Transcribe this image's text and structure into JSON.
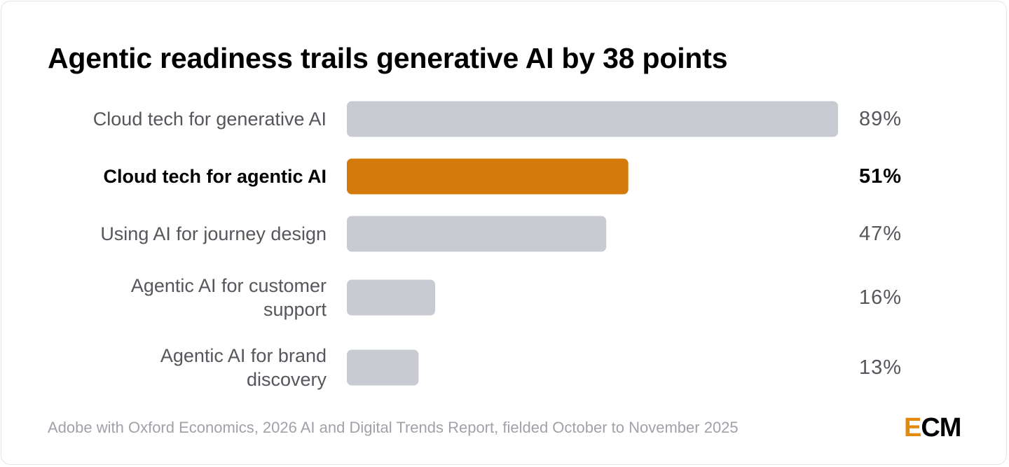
{
  "chart_data": {
    "type": "bar",
    "orientation": "horizontal",
    "title": "Agentic readiness trails generative AI by 38 points",
    "categories": [
      [
        "Cloud tech for generative AI"
      ],
      [
        "Cloud tech for agentic AI"
      ],
      [
        "Using AI for journey design"
      ],
      [
        "Agentic AI for customer",
        "support"
      ],
      [
        "Agentic AI for brand",
        "discovery"
      ]
    ],
    "values": [
      89,
      51,
      47,
      16,
      13
    ],
    "value_labels": [
      "89%",
      "51%",
      "47%",
      "16%",
      "13%"
    ],
    "highlight_index": 1,
    "xlim": [
      0,
      89
    ],
    "grid": false,
    "legend": "none",
    "colors": {
      "bar": "#c9cbd3",
      "highlight": "#d4790b"
    }
  },
  "source": "Adobe with Oxford Economics, 2026 AI and Digital Trends Report, fielded October to November 2025",
  "logo": {
    "first": "E",
    "rest": "CM"
  }
}
